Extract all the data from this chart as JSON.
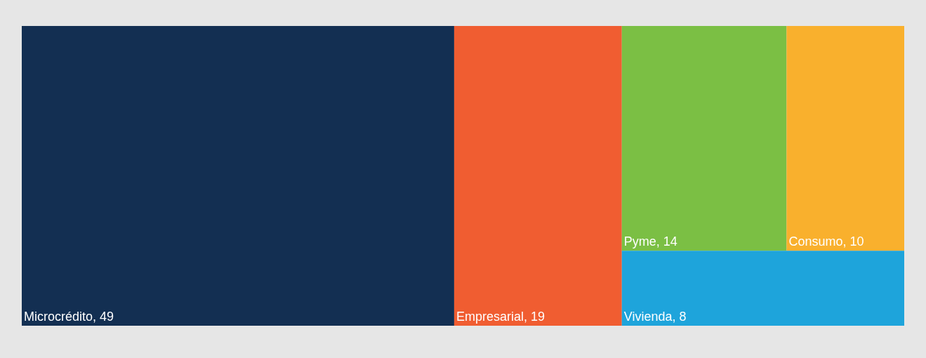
{
  "chart_data": {
    "type": "other",
    "categories": [
      "Microcrédito",
      "Empresarial",
      "Pyme",
      "Consumo",
      "Vivienda"
    ],
    "values": [
      49,
      19,
      14,
      10,
      8
    ],
    "colors": [
      "#132f52",
      "#f05d31",
      "#7bbf44",
      "#f9b02d",
      "#1ea4db"
    ],
    "value_labels": [
      ", 49",
      ", 19",
      ", 14",
      ", 10",
      ", 8"
    ]
  }
}
